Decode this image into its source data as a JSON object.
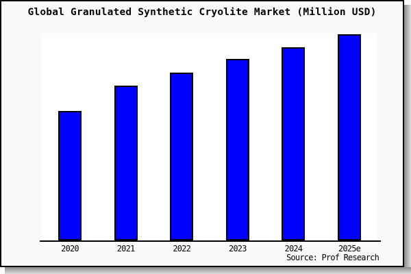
{
  "window": {
    "background": "#fafafa",
    "plot_background": "#ffffff",
    "frame_border_color": "#000000",
    "shadow_color": "#8a8a8a"
  },
  "title": "Global Granulated Synthetic Cryolite Market (Million USD)",
  "source": "Source: Prof Research",
  "chart_data": {
    "type": "bar",
    "title": "Global Granulated Synthetic Cryolite Market (Million USD)",
    "categories": [
      "2020",
      "2021",
      "2022",
      "2023",
      "2024",
      "2025e"
    ],
    "values": [
      62.6,
      74.8,
      81.1,
      87.7,
      93.4,
      99.7
    ],
    "values_unit": "percent of tallest-bar scale (no numeric y-axis shown in chart)",
    "ylim": [
      0,
      100
    ],
    "xlabel": "",
    "ylabel": "",
    "y_axis_shown": false,
    "value_labels_shown": false,
    "gridlines": false,
    "legend": "none",
    "bar_color": "#0000ff",
    "bar_border_color": "#000000",
    "source": "Source: Prof Research"
  }
}
